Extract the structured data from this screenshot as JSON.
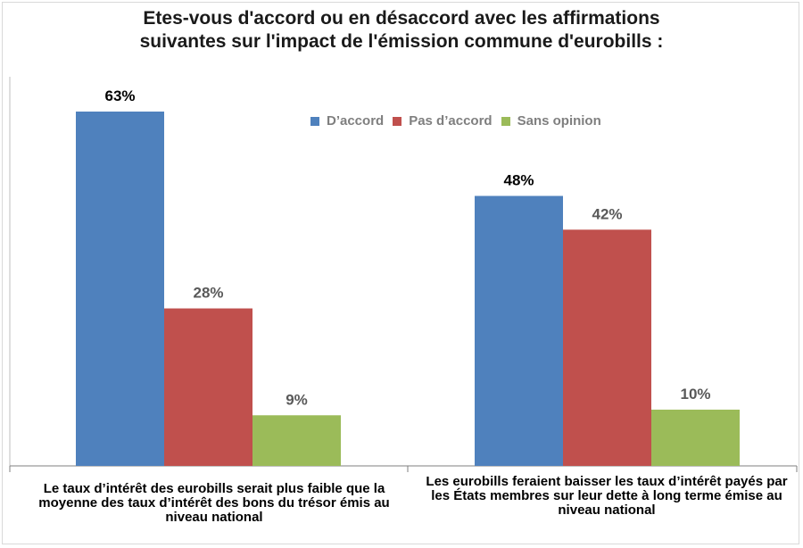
{
  "chart_data": {
    "type": "bar",
    "title_lines": [
      "Etes-vous d'accord ou en désaccord avec les affirmations",
      "suivantes sur l'impact de l'émission commune d'eurobills :"
    ],
    "categories": [
      "Le taux d’intérêt des eurobills serait plus faible que la moyenne des taux d’intérêt des bons du trésor émis au niveau national",
      "Les eurobills feraient baisser les taux d’intérêt payés par les États membres sur leur dette à long terme émise au niveau national"
    ],
    "series": [
      {
        "name": "D’accord",
        "values": [
          63,
          48
        ],
        "color": "#4f81bd",
        "labels": [
          "63%",
          "48%"
        ]
      },
      {
        "name": "Pas d’accord",
        "values": [
          28,
          42
        ],
        "color": "#c0504d",
        "labels": [
          "28%",
          "42%"
        ]
      },
      {
        "name": "Sans opinion",
        "values": [
          9,
          10
        ],
        "color": "#9bbb59",
        "labels": [
          "9%",
          "10%"
        ]
      }
    ],
    "ylim": [
      0,
      63
    ],
    "legend_position": "top-center",
    "grid": false
  }
}
